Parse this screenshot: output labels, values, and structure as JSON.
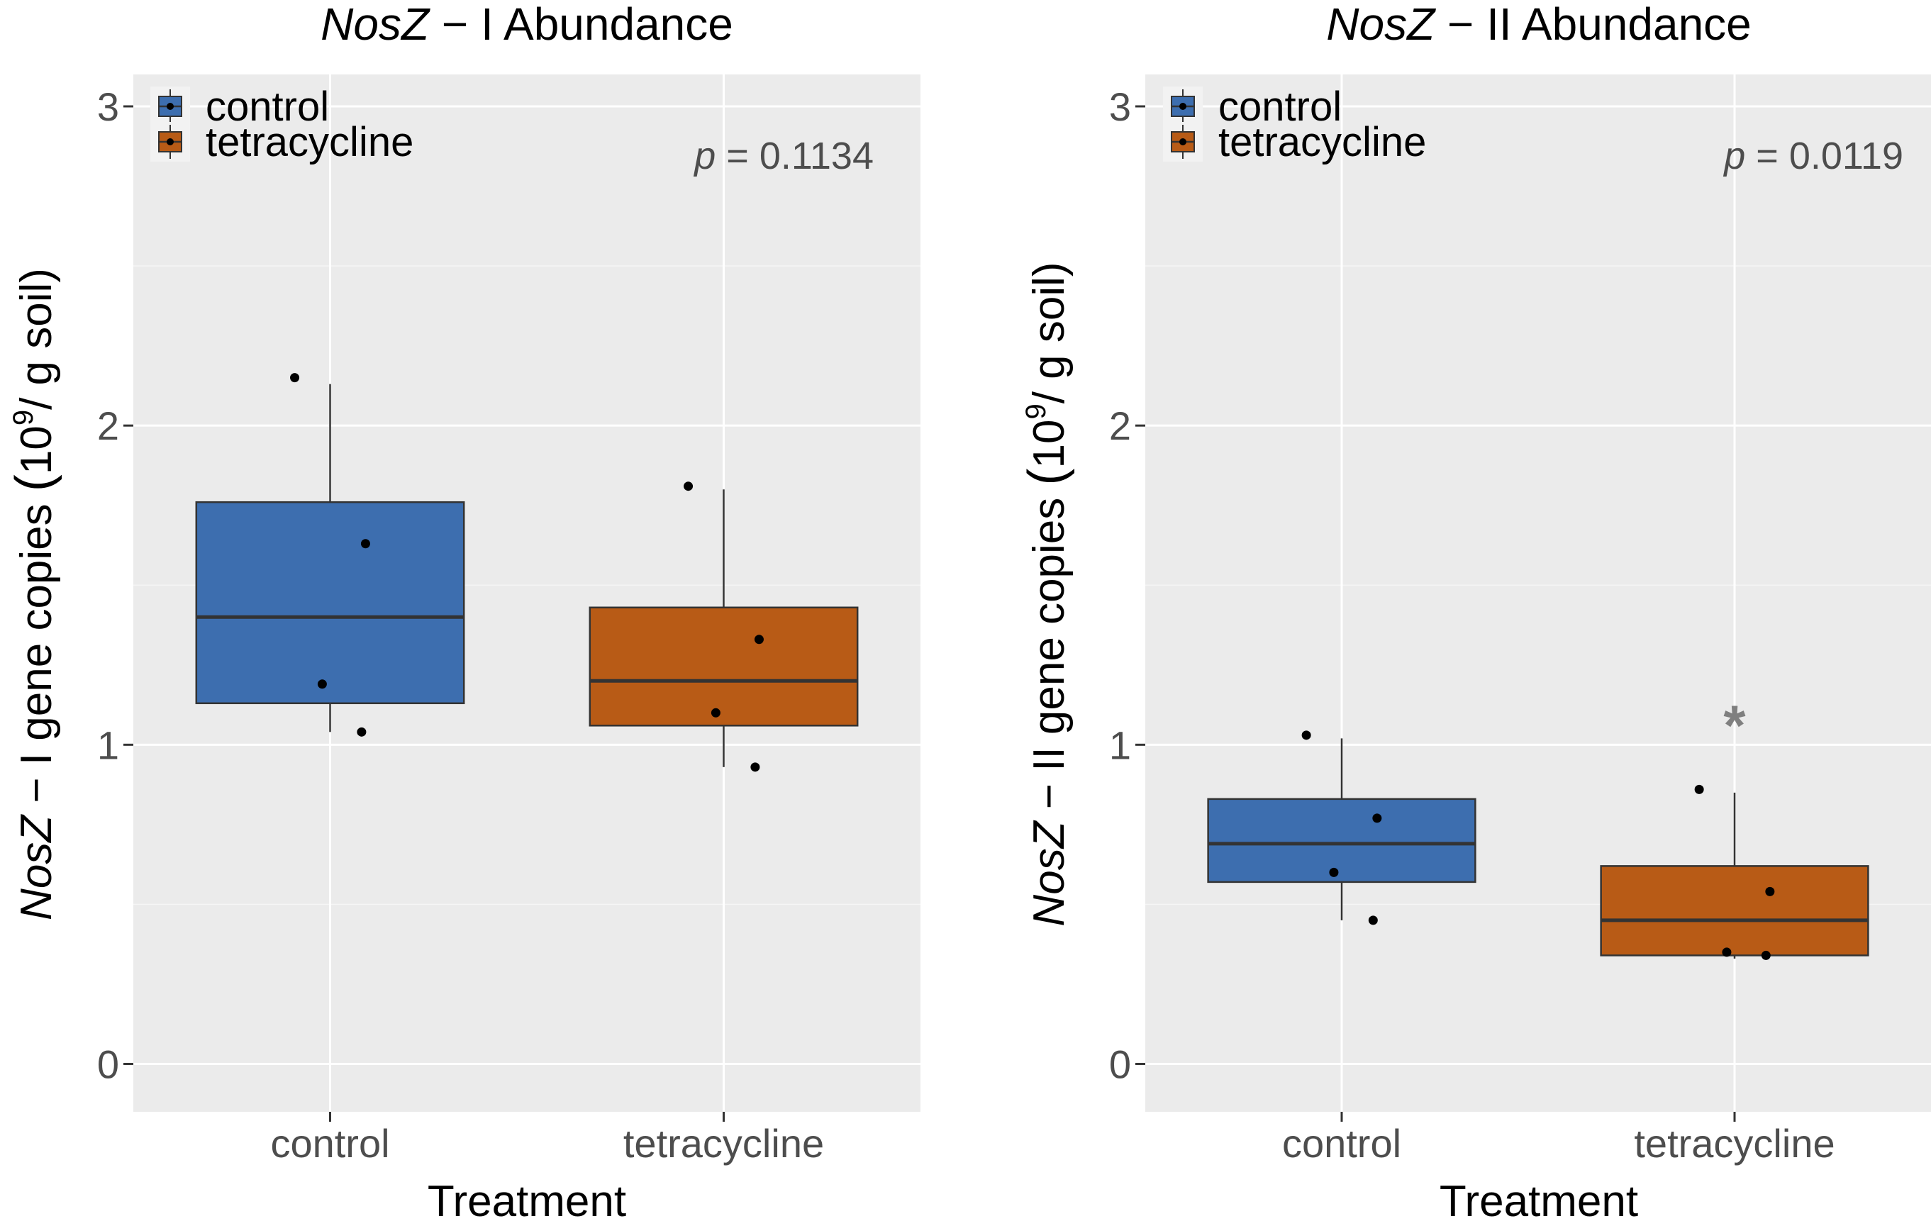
{
  "chart_data": [
    {
      "type": "box",
      "title_italic": "NosZ",
      "title_rest": " − I Abundance",
      "xlabel": "Treatment",
      "ylabel_italic": "NosZ",
      "ylabel_rest": " − I gene copies ",
      "ylabel_unit_open": "(",
      "ylabel_unit_base": "10",
      "ylabel_unit_exp": "9",
      "ylabel_unit_tail": "/ g soil)",
      "ylim": [
        -0.15,
        3.1
      ],
      "yticks": [
        0,
        1,
        2,
        3
      ],
      "categories": [
        "control",
        "tetracycline"
      ],
      "boxes": [
        {
          "category": "control",
          "q1": 1.13,
          "median": 1.4,
          "q3": 1.76,
          "whisker_low": 1.04,
          "whisker_high": 2.13,
          "points": [
            2.15,
            1.63,
            1.19,
            1.04
          ],
          "color": "#3d6eaf"
        },
        {
          "category": "tetracycline",
          "q1": 1.06,
          "median": 1.2,
          "q3": 1.43,
          "whisker_low": 0.93,
          "whisker_high": 1.8,
          "points": [
            1.81,
            1.33,
            1.1,
            0.93
          ],
          "color": "#b85b16"
        }
      ],
      "legend": [
        {
          "label": "control",
          "color": "#3d6eaf"
        },
        {
          "label": "tetracycline",
          "color": "#b85b16"
        }
      ],
      "p_label": "p",
      "p_value": " = 0.1134",
      "annotation": ""
    },
    {
      "type": "box",
      "title_italic": "NosZ",
      "title_rest": " − II Abundance",
      "xlabel": "Treatment",
      "ylabel_italic": "NosZ",
      "ylabel_rest": " − II gene copies ",
      "ylabel_unit_open": "(",
      "ylabel_unit_base": "10",
      "ylabel_unit_exp": "9",
      "ylabel_unit_tail": "/ g soil)",
      "ylim": [
        -0.15,
        3.1
      ],
      "yticks": [
        0,
        1,
        2,
        3
      ],
      "categories": [
        "control",
        "tetracycline"
      ],
      "boxes": [
        {
          "category": "control",
          "q1": 0.57,
          "median": 0.69,
          "q3": 0.83,
          "whisker_low": 0.45,
          "whisker_high": 1.02,
          "points": [
            1.03,
            0.77,
            0.6,
            0.45
          ],
          "color": "#3d6eaf"
        },
        {
          "category": "tetracycline",
          "q1": 0.34,
          "median": 0.45,
          "q3": 0.62,
          "whisker_low": 0.33,
          "whisker_high": 0.85,
          "points": [
            0.86,
            0.54,
            0.35,
            0.34
          ],
          "color": "#b85b16"
        }
      ],
      "legend": [
        {
          "label": "control",
          "color": "#3d6eaf"
        },
        {
          "label": "tetracycline",
          "color": "#b85b16"
        }
      ],
      "p_label": "p",
      "p_value": " = 0.0119",
      "annotation": "*"
    }
  ]
}
